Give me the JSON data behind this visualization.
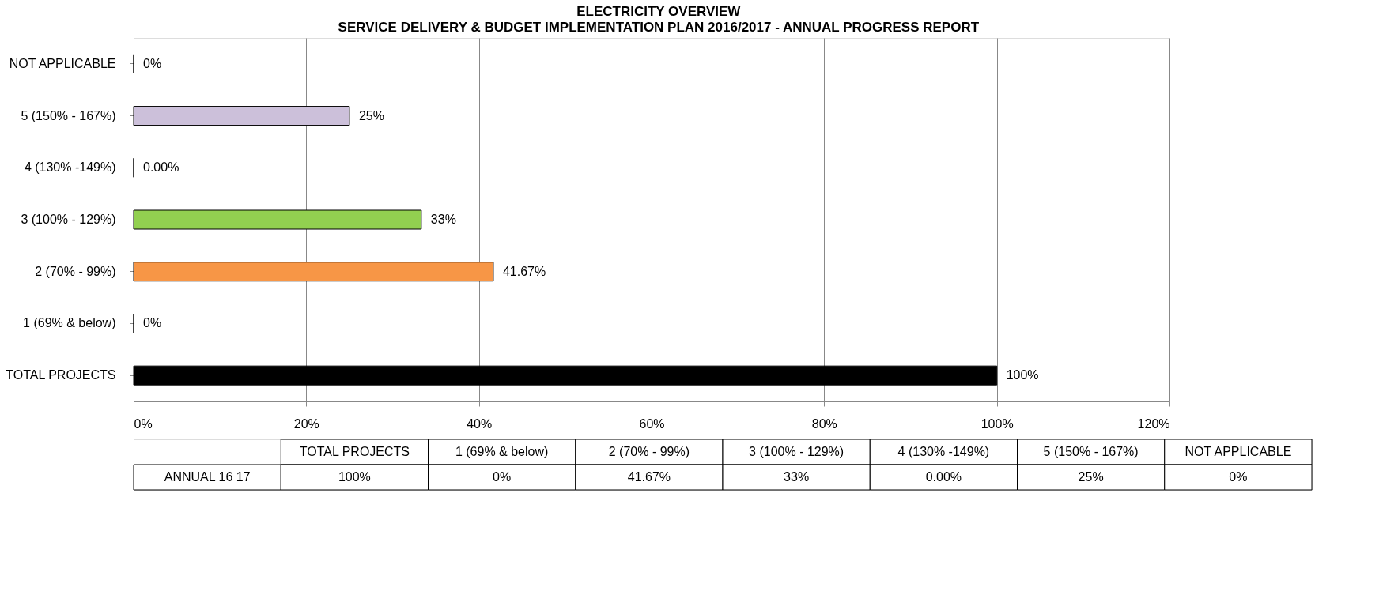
{
  "chart_data": {
    "type": "bar",
    "orientation": "horizontal",
    "title": "ELECTRICITY OVERVIEW",
    "subtitle": "SERVICE DELIVERY & BUDGET IMPLEMENTATION PLAN 2016/2017 -  ANNUAL PROGRESS REPORT",
    "categories": [
      "NOT APPLICABLE",
      "5 (150% - 167%)",
      "4 (130% -149%)",
      "3 (100% - 129%)",
      "2 (70% - 99%)",
      "1 (69% & below)",
      "TOTAL PROJECTS"
    ],
    "series": [
      {
        "name": "ANNUAL 16 17",
        "values": [
          0,
          25,
          0,
          33.33,
          41.67,
          0,
          100
        ],
        "value_labels": [
          "0%",
          "25%",
          "0.00%",
          "33%",
          "41.67%",
          "0%",
          "100%"
        ]
      }
    ],
    "colors": [
      "#4f81bd",
      "#ccc0da",
      "#4f81bd",
      "#92d050",
      "#f79646",
      "#4f81bd",
      "#000000"
    ],
    "xlim": [
      0,
      120
    ],
    "xticks": [
      {
        "value": 0,
        "label": "0%"
      },
      {
        "value": 20,
        "label": "20%"
      },
      {
        "value": 40,
        "label": "40%"
      },
      {
        "value": 60,
        "label": "60%"
      },
      {
        "value": 80,
        "label": "80%"
      },
      {
        "value": 100,
        "label": "100%"
      },
      {
        "value": 120,
        "label": "120%"
      }
    ],
    "grid": "x"
  }
}
